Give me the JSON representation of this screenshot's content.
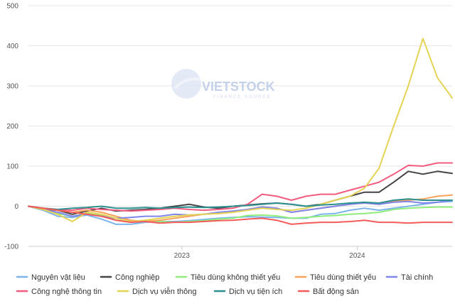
{
  "watermark": {
    "text": "VIETSTOCK",
    "subtext": "FINANCE SOURCE"
  },
  "chart_data": {
    "type": "line",
    "title": "",
    "xlabel": "",
    "ylabel": "",
    "ylim": [
      -100,
      500
    ],
    "y_ticks": [
      -100,
      0,
      100,
      200,
      300,
      400,
      500
    ],
    "x_ticks": [
      {
        "label": "2023",
        "x": 10.5
      },
      {
        "label": "2024",
        "x": 22.5
      }
    ],
    "grid": "horizontal",
    "legend_position": "bottom",
    "x": [
      0,
      1,
      2,
      3,
      4,
      5,
      6,
      7,
      8,
      9,
      10,
      11,
      12,
      13,
      14,
      15,
      16,
      17,
      18,
      19,
      20,
      21,
      22,
      23,
      24,
      25,
      26,
      27,
      28,
      29
    ],
    "series": [
      {
        "name": "Nguyên vật liệu",
        "color": "#7cb5ec",
        "values": [
          0,
          -10,
          -25,
          -28,
          -22,
          -32,
          -45,
          -45,
          -40,
          -38,
          -38,
          -36,
          -33,
          -30,
          -28,
          -26,
          -27,
          -28,
          -30,
          -30,
          -20,
          -18,
          -10,
          -5,
          -10,
          -5,
          0,
          5,
          10,
          12
        ]
      },
      {
        "name": "Công nghiệp",
        "color": "#434348",
        "values": [
          0,
          -8,
          -10,
          -20,
          -12,
          -5,
          -12,
          -10,
          -8,
          -5,
          0,
          5,
          -2,
          -5,
          0,
          3,
          6,
          8,
          5,
          0,
          5,
          15,
          25,
          35,
          35,
          60,
          87,
          80,
          87,
          82
        ]
      },
      {
        "name": "Tiêu dùng không thiết yếu",
        "color": "#90ed7d",
        "values": [
          0,
          -8,
          -18,
          -25,
          -18,
          -22,
          -35,
          -38,
          -35,
          -38,
          -40,
          -38,
          -36,
          -32,
          -30,
          -23,
          -22,
          -24,
          -30,
          -28,
          -25,
          -23,
          -20,
          -18,
          -15,
          -8,
          -5,
          -3,
          -2,
          -2
        ]
      },
      {
        "name": "Tiêu dùng thiết yếu",
        "color": "#f7a35c",
        "values": [
          0,
          -5,
          -10,
          -15,
          -10,
          -15,
          -25,
          -35,
          -38,
          -35,
          -30,
          -25,
          -20,
          -18,
          -15,
          -8,
          -2,
          -5,
          -15,
          -10,
          -5,
          0,
          5,
          8,
          5,
          12,
          15,
          18,
          25,
          28
        ]
      },
      {
        "name": "Tài chính",
        "color": "#8085e9",
        "values": [
          0,
          -8,
          -15,
          -25,
          -20,
          -25,
          -30,
          -28,
          -25,
          -25,
          -20,
          -22,
          -20,
          -15,
          -12,
          -8,
          -2,
          -5,
          -15,
          -10,
          -5,
          0,
          5,
          8,
          5,
          10,
          12,
          8,
          10,
          15
        ]
      },
      {
        "name": "Công nghệ thông tin",
        "color": "#f15c80",
        "values": [
          0,
          -5,
          -8,
          -10,
          -5,
          -8,
          -10,
          -12,
          -10,
          -8,
          -5,
          -8,
          -10,
          -8,
          -5,
          5,
          30,
          25,
          15,
          25,
          30,
          30,
          40,
          50,
          60,
          80,
          102,
          100,
          108,
          108
        ]
      },
      {
        "name": "Dịch vụ viễn thông",
        "color": "#e4d354",
        "values": [
          0,
          -8,
          -20,
          -38,
          -15,
          -20,
          -30,
          -38,
          -35,
          -30,
          -25,
          -22,
          -20,
          -18,
          -15,
          -10,
          -5,
          -8,
          -10,
          -5,
          5,
          15,
          25,
          45,
          95,
          200,
          300,
          418,
          320,
          270
        ]
      },
      {
        "name": "Dịch vụ tiện ích",
        "color": "#2b908f",
        "values": [
          0,
          -5,
          -8,
          -5,
          -3,
          0,
          -5,
          -5,
          -3,
          -5,
          -3,
          -2,
          -3,
          -2,
          0,
          2,
          5,
          8,
          5,
          0,
          3,
          5,
          8,
          10,
          8,
          15,
          18,
          15,
          15,
          15
        ]
      },
      {
        "name": "Bất động sản",
        "color": "#f45b5b",
        "values": [
          0,
          -5,
          -10,
          -15,
          -20,
          -25,
          -35,
          -40,
          -38,
          -42,
          -40,
          -40,
          -38,
          -36,
          -35,
          -32,
          -30,
          -35,
          -45,
          -42,
          -40,
          -40,
          -38,
          -35,
          -40,
          -40,
          -42,
          -40,
          -40,
          -40
        ]
      }
    ]
  }
}
